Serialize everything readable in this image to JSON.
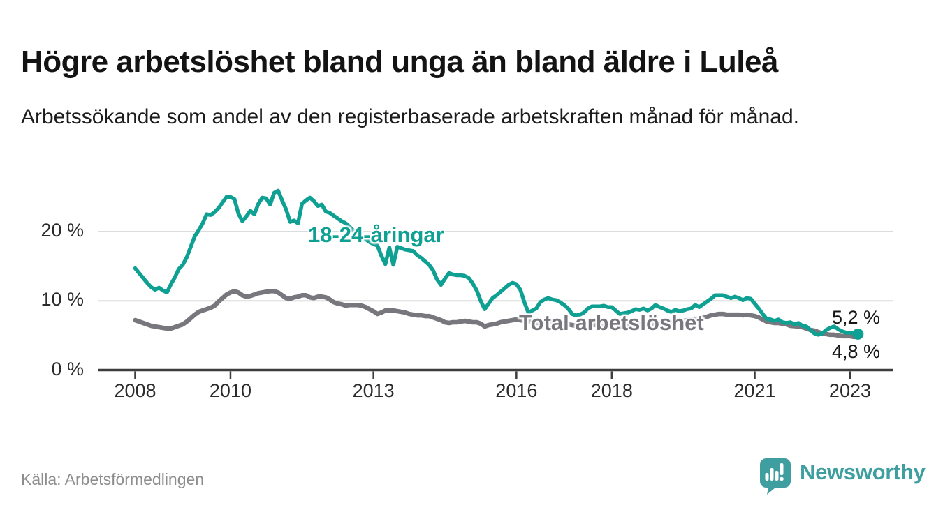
{
  "header": {
    "title": "Högre arbetslöshet bland unga än bland äldre i Luleå",
    "subtitle": "Arbetssökande som andel av den registerbaserade arbetskraften månad för månad."
  },
  "chart_data": {
    "type": "line",
    "unit": "%",
    "x_interval": "monthly",
    "x_start": "2008-01",
    "x_end": "2023-03",
    "ylim": [
      0,
      27
    ],
    "grid": "horizontal",
    "yticks": [
      {
        "value": 0,
        "label": "0 %"
      },
      {
        "value": 10,
        "label": "10 %"
      },
      {
        "value": 20,
        "label": "20 %"
      }
    ],
    "xticks": [
      {
        "label": "2008",
        "month_index": 0
      },
      {
        "label": "2010",
        "month_index": 24
      },
      {
        "label": "2013",
        "month_index": 60
      },
      {
        "label": "2016",
        "month_index": 96
      },
      {
        "label": "2018",
        "month_index": 120
      },
      {
        "label": "2021",
        "month_index": 156
      },
      {
        "label": "2023",
        "month_index": 180
      }
    ],
    "series": [
      {
        "name": "Total arbetslöshet",
        "color": "#77777d",
        "line_width": 6.5,
        "values": [
          7.2,
          7.0,
          6.8,
          6.6,
          6.4,
          6.3,
          6.2,
          6.1,
          6.0,
          6.0,
          6.2,
          6.4,
          6.6,
          7.0,
          7.5,
          8.0,
          8.4,
          8.6,
          8.8,
          9.0,
          9.3,
          9.9,
          10.4,
          10.9,
          11.2,
          11.4,
          11.2,
          10.8,
          10.6,
          10.7,
          10.9,
          11.1,
          11.2,
          11.3,
          11.4,
          11.4,
          11.2,
          10.8,
          10.4,
          10.3,
          10.5,
          10.6,
          10.8,
          10.8,
          10.5,
          10.4,
          10.6,
          10.6,
          10.5,
          10.2,
          9.8,
          9.6,
          9.5,
          9.3,
          9.4,
          9.4,
          9.4,
          9.3,
          9.1,
          8.8,
          8.5,
          8.1,
          8.3,
          8.6,
          8.6,
          8.6,
          8.5,
          8.4,
          8.3,
          8.1,
          8.0,
          7.9,
          7.9,
          7.8,
          7.8,
          7.6,
          7.4,
          7.2,
          6.9,
          6.8,
          6.9,
          6.9,
          7.0,
          7.1,
          7.0,
          6.9,
          6.9,
          6.7,
          6.3,
          6.5,
          6.6,
          6.7,
          6.9,
          7.0,
          7.1,
          7.2,
          7.3,
          7.2,
          7.1,
          7.0,
          6.9,
          6.8,
          6.8,
          6.9,
          7.0,
          7.0,
          6.9,
          6.8,
          6.7,
          6.6,
          6.5,
          6.4,
          6.4,
          6.5,
          6.6,
          6.6,
          6.5,
          6.4,
          6.4,
          6.5,
          6.5,
          6.4,
          6.3,
          6.3,
          6.4,
          6.5,
          6.6,
          6.6,
          6.5,
          6.6,
          6.7,
          6.8,
          6.9,
          6.8,
          6.8,
          6.9,
          7.0,
          7.1,
          7.1,
          7.2,
          7.3,
          7.4,
          7.4,
          7.6,
          7.7,
          7.9,
          8.0,
          8.1,
          8.1,
          8.0,
          8.0,
          8.0,
          8.0,
          7.9,
          8.0,
          7.9,
          7.8,
          7.6,
          7.3,
          7.0,
          6.9,
          6.8,
          6.8,
          6.7,
          6.6,
          6.4,
          6.35,
          6.3,
          6.2,
          6.0,
          5.8,
          5.7,
          5.5,
          5.3,
          5.2,
          5.1,
          5.1,
          5.0,
          4.9,
          4.9,
          4.9,
          4.8,
          4.8
        ]
      },
      {
        "name": "18-24-åringar",
        "color": "#0ea092",
        "line_width": 5.5,
        "end_dot": true,
        "values": [
          14.7,
          14.0,
          13.3,
          12.6,
          12.0,
          11.6,
          11.9,
          11.5,
          11.2,
          12.4,
          13.4,
          14.6,
          15.2,
          16.3,
          17.8,
          19.3,
          20.2,
          21.2,
          22.5,
          22.4,
          22.8,
          23.4,
          24.2,
          25.0,
          25.0,
          24.7,
          22.6,
          21.5,
          22.2,
          23.0,
          22.5,
          24.0,
          24.9,
          24.8,
          23.9,
          25.6,
          25.9,
          24.5,
          23.2,
          21.4,
          21.6,
          21.2,
          24.0,
          24.5,
          24.9,
          24.4,
          23.7,
          23.9,
          22.9,
          22.7,
          22.3,
          21.9,
          21.5,
          21.2,
          20.7,
          20.1,
          19.6,
          19.2,
          18.9,
          18.5,
          18.2,
          18.0,
          16.5,
          15.3,
          17.7,
          15.2,
          17.8,
          17.6,
          17.4,
          17.3,
          17.2,
          16.6,
          16.2,
          15.7,
          15.2,
          14.4,
          13.1,
          12.3,
          13.2,
          14.0,
          13.8,
          13.7,
          13.7,
          13.6,
          13.3,
          12.5,
          11.5,
          10.0,
          8.8,
          9.6,
          10.4,
          10.8,
          11.3,
          11.8,
          12.3,
          12.6,
          12.4,
          11.6,
          9.8,
          8.3,
          8.6,
          8.9,
          9.8,
          10.2,
          10.4,
          10.2,
          10.1,
          9.8,
          9.4,
          8.9,
          8.1,
          7.9,
          8.0,
          8.3,
          8.9,
          9.2,
          9.2,
          9.2,
          9.3,
          9.1,
          9.1,
          8.6,
          8.1,
          8.2,
          8.3,
          8.5,
          8.8,
          8.7,
          8.9,
          8.6,
          8.9,
          9.4,
          9.1,
          8.9,
          8.6,
          8.4,
          8.7,
          8.5,
          8.6,
          8.8,
          8.9,
          9.4,
          9.1,
          9.5,
          9.9,
          10.3,
          10.8,
          10.8,
          10.8,
          10.6,
          10.4,
          10.6,
          10.4,
          10.1,
          10.4,
          10.3,
          9.6,
          8.9,
          8.1,
          7.4,
          7.3,
          7.1,
          7.3,
          6.9,
          6.8,
          6.9,
          6.6,
          6.8,
          6.4,
          6.3,
          5.8,
          5.3,
          5.1,
          5.3,
          5.8,
          6.1,
          6.3,
          5.9,
          5.6,
          5.4,
          5.4,
          5.3,
          5.2
        ]
      }
    ],
    "end_labels": [
      {
        "text": "5,2 %",
        "series": "18-24-åringar"
      },
      {
        "text": "4,8 %",
        "series": "Total arbetslöshet"
      }
    ]
  },
  "style": {
    "axis_color": "#3d3d3d",
    "grid_color": "#dcdcdc",
    "youth_color": "#0ea092",
    "total_color": "#77777d"
  },
  "footer": {
    "source": "Källa: Arbetsförmedlingen",
    "brand": "Newsworthy",
    "brand_color": "#3f9ea0"
  }
}
